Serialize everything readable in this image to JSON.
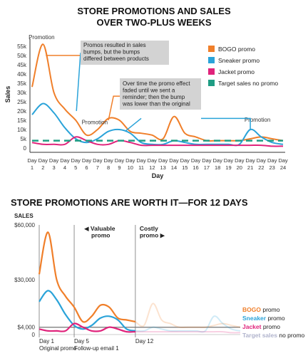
{
  "colors": {
    "bogo": "#f07f2a",
    "sneaker": "#2aa3d9",
    "jacket": "#e0237b",
    "target": "#1f9d84",
    "axis": "#333333",
    "grid": "#d9d9d9",
    "callout_bg": "#d3d3d3",
    "target_light": "#b0b3cc"
  },
  "chart_data": [
    {
      "type": "line",
      "title": "STORE PROMOTIONS AND SALES\nOVER TWO-PLUS WEEKS",
      "xlabel": "Day",
      "ylabel": "Sales",
      "categories": [
        "Day 1",
        "Day 2",
        "Day 3",
        "Day 4",
        "Day 5",
        "Day 6",
        "Day 7",
        "Day 8",
        "Day 9",
        "Day 10",
        "Day 11",
        "Day 12",
        "Day 13",
        "Day 14",
        "Day 15",
        "Day 16",
        "Day 17",
        "Day 18",
        "Day 19",
        "Day 20",
        "Day 21",
        "Day 22",
        "Day 23",
        "Day 24"
      ],
      "tick_top": [
        "Day",
        "Day",
        "Day",
        "Day",
        "Day",
        "Day",
        "Day",
        "Day",
        "Day",
        "Day",
        "Day",
        "Day",
        "Day",
        "Day",
        "Day",
        "Day",
        "Day",
        "Day",
        "Day",
        "Day",
        "Day",
        "Day",
        "Day",
        "Day"
      ],
      "tick_num": [
        "1",
        "2",
        "3",
        "4",
        "5",
        "6",
        "7",
        "8",
        "9",
        "10",
        "11",
        "12",
        "13",
        "14",
        "15",
        "16",
        "17",
        "18",
        "19",
        "20",
        "21",
        "22",
        "23",
        "24"
      ],
      "yticks": [
        0,
        5000,
        10000,
        15000,
        20000,
        25000,
        30000,
        35000,
        40000,
        45000,
        50000,
        55000
      ],
      "ytick_labels": [
        "0",
        "5k",
        "10k",
        "15k",
        "20k",
        "25k",
        "30k",
        "35k",
        "40k",
        "45k",
        "50k",
        "55k"
      ],
      "ylim": [
        0,
        58000
      ],
      "grid": false,
      "legend_position": "right",
      "series": [
        {
          "name": "BOGO promo",
          "key": "bogo",
          "values": [
            33000,
            56000,
            30000,
            21000,
            15000,
            7000,
            10000,
            16000,
            15000,
            9000,
            8000,
            7000,
            5000,
            17000,
            8000,
            6000,
            4000,
            4000,
            4000,
            4000,
            5000,
            6000,
            5000,
            4000
          ]
        },
        {
          "name": "Sneaker promo",
          "key": "sneaker",
          "values": [
            18000,
            24000,
            19000,
            11000,
            5000,
            3000,
            5000,
            9000,
            10000,
            8000,
            3000,
            2000,
            2000,
            4000,
            3000,
            2000,
            2000,
            2000,
            2000,
            2000,
            10000,
            6000,
            3000,
            2000
          ]
        },
        {
          "name": "Jacket promo",
          "key": "jacket",
          "values": [
            3000,
            2000,
            2000,
            2000,
            6000,
            4000,
            2000,
            2000,
            4000,
            3000,
            1500,
            1500,
            1500,
            1500,
            1500,
            1500,
            1500,
            1500,
            1500,
            1500,
            1500,
            1500,
            1000,
            1000
          ]
        },
        {
          "name": "Target sales no promo",
          "key": "target",
          "dashed": true,
          "values": [
            4000,
            4000,
            4000,
            4000,
            4000,
            4000,
            4000,
            4000,
            4000,
            4000,
            4000,
            4000,
            4000,
            4000,
            4000,
            4000,
            4000,
            4000,
            4000,
            4000,
            4000,
            4000,
            4000,
            4000
          ]
        }
      ],
      "annotations": [
        {
          "text": "Promotion",
          "day": 2,
          "y": 58000
        },
        {
          "text": "Promotion",
          "day": 7,
          "y": 14000
        },
        {
          "text": "Promotion",
          "day": 21,
          "y": 10000
        },
        {
          "text": "Promos resulted in sales bumps, but the bumps differed between products"
        },
        {
          "text": "Over time the promo effect faded until we sent a reminder; then the bump was lower than the original"
        }
      ]
    },
    {
      "type": "line",
      "title": "STORE PROMOTIONS ARE WORTH IT—FOR 12 DAYS",
      "ylabel": "SALES",
      "yticks": [
        0,
        4000,
        30000,
        60000
      ],
      "ytick_labels": [
        "0",
        "$4,000",
        "$30,000",
        "$60,000"
      ],
      "ylim": [
        0,
        60000
      ],
      "grid": false,
      "x_markers": [
        {
          "day": 1,
          "label1": "Day 1",
          "label2": "Original promo"
        },
        {
          "day": 5,
          "label1": "Day 5",
          "label2": "Follow-up email 1"
        },
        {
          "day": 12,
          "label1": "Day 12",
          "label2": ""
        }
      ],
      "region_labels": [
        {
          "text": "◀ Valuable promo",
          "from": 5,
          "to": 12
        },
        {
          "text": "Costly promo ▶",
          "from": 12
        }
      ],
      "legend": [
        {
          "bold": "BOGO",
          "rest": " promo",
          "key": "bogo"
        },
        {
          "bold": "Sneaker",
          "rest": " promo",
          "key": "sneaker"
        },
        {
          "bold": "Jacket",
          "rest": " promo",
          "key": "jacket"
        },
        {
          "bold": "Target sales",
          "rest": " no promo",
          "key": "target"
        }
      ],
      "legend_position": "right"
    }
  ]
}
